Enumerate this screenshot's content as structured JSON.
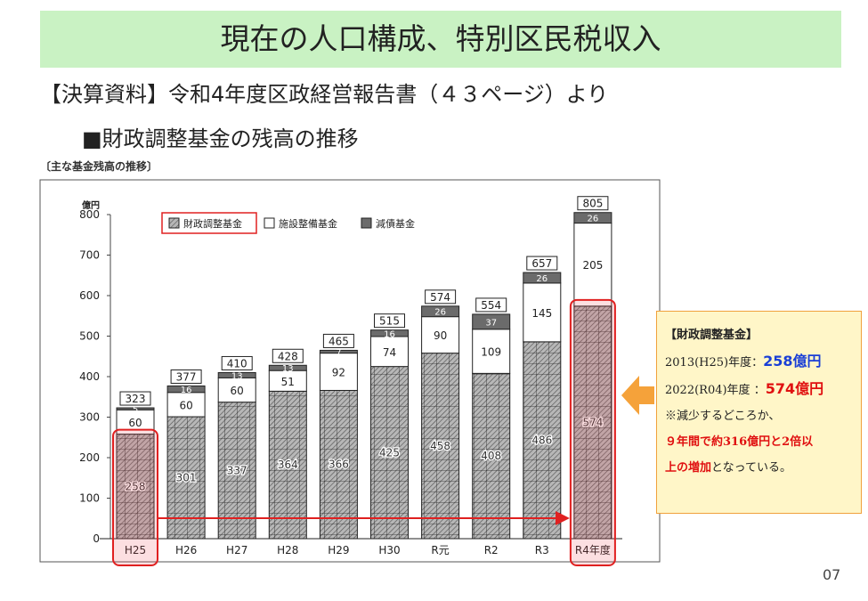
{
  "slide": {
    "title": "現在の人口構成、特別区民税収入",
    "source": "【決算資料】令和4年度区政経営報告書（４３ページ）より",
    "subtitle": "■財政調整基金の残高の推移",
    "caption": "〔主な基金残高の推移〕",
    "page_number": "07"
  },
  "callout": {
    "title": "【財政調整基金】",
    "line1_label": "2013(H25)年度：",
    "line1_value": "258億円",
    "line2_label": "2022(R04)年度 ：",
    "line2_value": "574億円",
    "line3": "※減少するどころか、",
    "line4_red": "９年間で約316億円と2倍以",
    "line5_red": "上の増加",
    "line5_rest": "となっている。"
  },
  "chart_data": {
    "type": "bar",
    "stacked": true,
    "ylabel": "億円",
    "ylim": [
      0,
      800
    ],
    "yticks": [
      0,
      100,
      200,
      300,
      400,
      500,
      600,
      700,
      800
    ],
    "categories": [
      "H25",
      "H26",
      "H27",
      "H28",
      "H29",
      "H30",
      "R元",
      "R2",
      "R3",
      "R4年度"
    ],
    "series": [
      {
        "name": "財政調整基金",
        "values": [
          258,
          301,
          337,
          364,
          366,
          425,
          458,
          408,
          486,
          574
        ]
      },
      {
        "name": "施設整備基金",
        "values": [
          60,
          60,
          60,
          51,
          92,
          74,
          90,
          109,
          145,
          205
        ]
      },
      {
        "name": "減債基金",
        "values": [
          5,
          16,
          13,
          13,
          7,
          16,
          26,
          37,
          26,
          26
        ]
      }
    ],
    "totals": [
      323,
      377,
      410,
      428,
      465,
      515,
      574,
      554,
      657,
      805
    ],
    "legend_position": "top-left",
    "highlighted_categories": [
      "H25",
      "R4年度"
    ],
    "annotation": "arrow from H25 to R4年度"
  }
}
